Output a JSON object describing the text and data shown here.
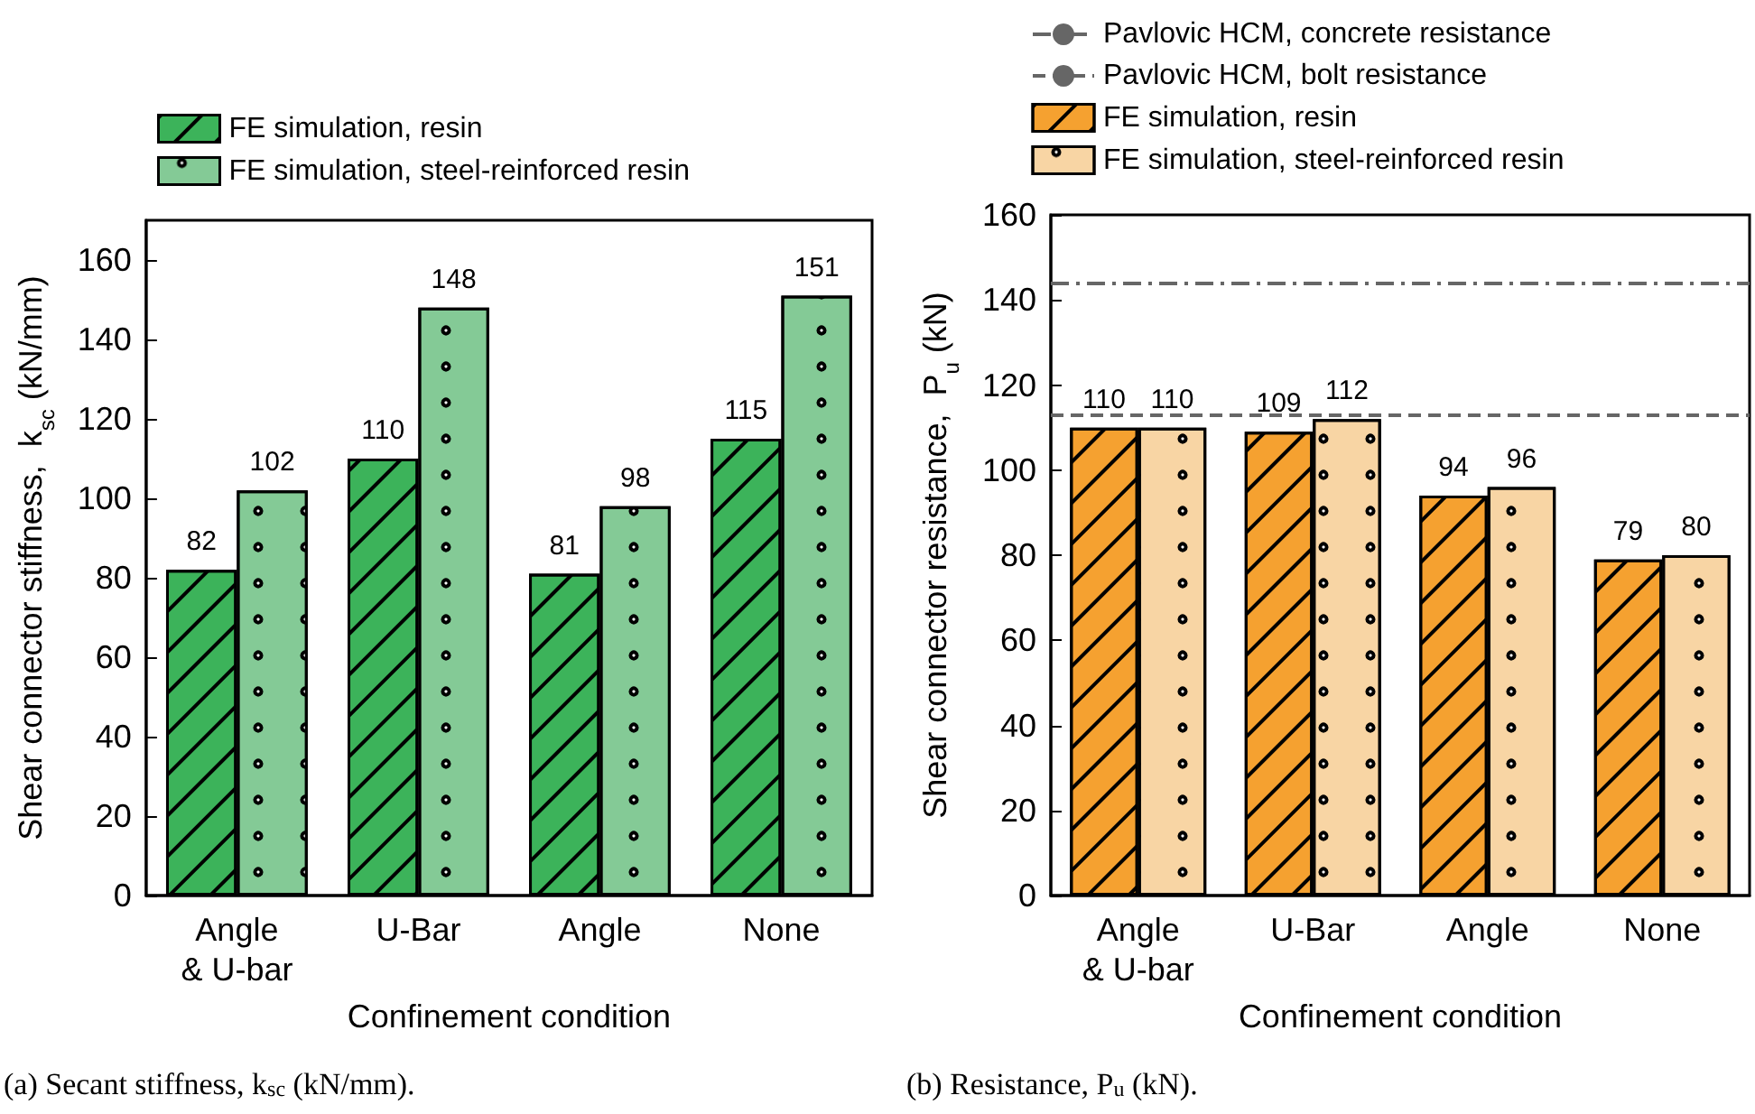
{
  "chart_data": [
    {
      "type": "bar",
      "categories": [
        "Angle\n& U-bar",
        "U-Bar",
        "Angle",
        "None"
      ],
      "xlabel": "Confinement condition",
      "ylabel": "Shear connector stiffness,  k$_{sc}$ (kN/mm)",
      "series": [
        {
          "name": "FE simulation, resin",
          "color": "#3cb35a",
          "values": [
            82,
            110,
            81,
            115
          ]
        },
        {
          "name": "FE simulation, steel-reinforced resin",
          "color": "#84ca96",
          "values": [
            102,
            148,
            98,
            151
          ]
        }
      ],
      "ylim": [
        0,
        170
      ],
      "yticks": [
        0,
        20,
        40,
        60,
        80,
        100,
        120,
        140,
        160
      ],
      "data_labels": true,
      "legend": "top",
      "grid": false,
      "annotations": [
        "(a) Secant stiffness, k$_{sc}$ (kN/mm)."
      ]
    },
    {
      "type": "bar",
      "categories": [
        "Angle\n& U-bar",
        "U-Bar",
        "Angle",
        "None"
      ],
      "xlabel": "Confinement condition",
      "ylabel": "Shear connector resistance,  P$_{u}$ (kN)",
      "series": [
        {
          "name": "FE simulation, resin",
          "color": "#f5a130",
          "values": [
            110,
            109,
            94,
            79
          ]
        },
        {
          "name": "FE simulation, steel-reinforced resin",
          "color": "#f8d5a4",
          "values": [
            110,
            112,
            96,
            80
          ]
        }
      ],
      "ylim": [
        0,
        160
      ],
      "yticks": [
        0,
        20,
        40,
        60,
        80,
        100,
        120,
        140,
        160
      ],
      "data_labels": true,
      "legend": "top",
      "grid": false,
      "ref_lines": [
        {
          "axis": "y",
          "value": 144,
          "label": "Pavlovic HCM, concrete resistance",
          "color": "#666666",
          "line_style": "dashdot"
        },
        {
          "axis": "y",
          "value": 113,
          "label": "Pavlovic HCM, bolt resistance",
          "color": "#666666",
          "line_style": "dashed"
        }
      ],
      "annotations": [
        "(b) Resistance, P$_{u}$ (kN)."
      ]
    }
  ]
}
